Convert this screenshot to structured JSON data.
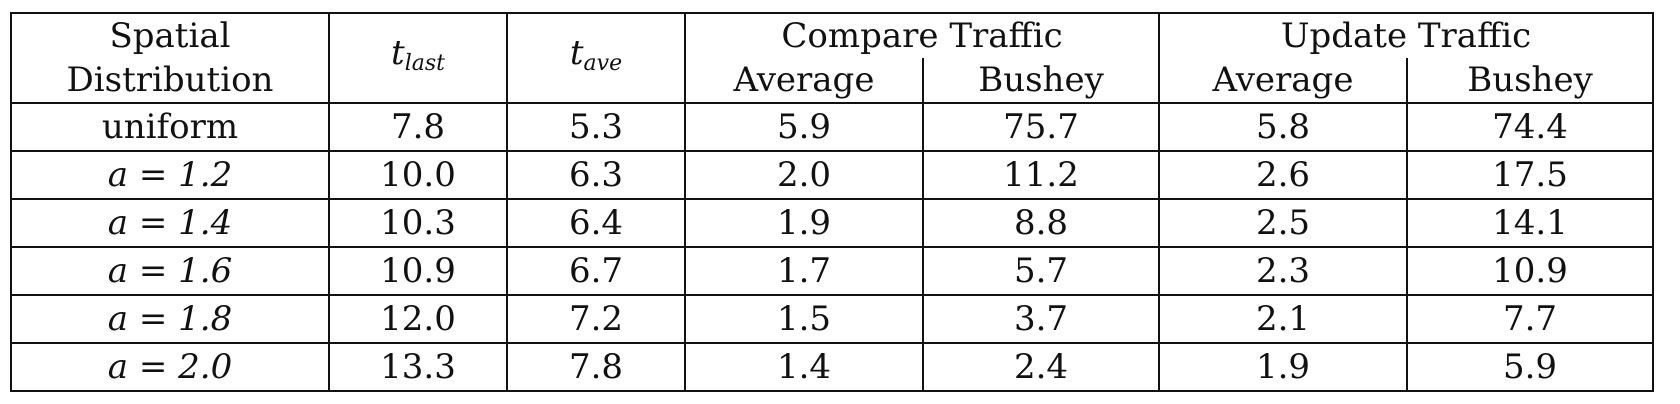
{
  "headers": {
    "col1_line1": "Spatial",
    "col1_line2": "Distribution",
    "t_last": {
      "base": "t",
      "sub": "last"
    },
    "t_ave": {
      "base": "t",
      "sub": "ave"
    },
    "compare_group": "Compare Traffic",
    "update_group": "Update Traffic",
    "average": "Average",
    "bushey": "Bushey"
  },
  "rows": [
    {
      "dist": "uniform",
      "t_last": "7.8",
      "t_ave": "5.3",
      "cmp_avg": "5.9",
      "cmp_bushey": "75.7",
      "upd_avg": "5.8",
      "upd_bushey": "74.4"
    },
    {
      "dist": "a = 1.2",
      "t_last": "10.0",
      "t_ave": "6.3",
      "cmp_avg": "2.0",
      "cmp_bushey": "11.2",
      "upd_avg": "2.6",
      "upd_bushey": "17.5"
    },
    {
      "dist": "a = 1.4",
      "t_last": "10.3",
      "t_ave": "6.4",
      "cmp_avg": "1.9",
      "cmp_bushey": "8.8",
      "upd_avg": "2.5",
      "upd_bushey": "14.1"
    },
    {
      "dist": "a = 1.6",
      "t_last": "10.9",
      "t_ave": "6.7",
      "cmp_avg": "1.7",
      "cmp_bushey": "5.7",
      "upd_avg": "2.3",
      "upd_bushey": "10.9"
    },
    {
      "dist": "a = 1.8",
      "t_last": "12.0",
      "t_ave": "7.2",
      "cmp_avg": "1.5",
      "cmp_bushey": "3.7",
      "upd_avg": "2.1",
      "upd_bushey": "7.7"
    },
    {
      "dist": "a = 2.0",
      "t_last": "13.3",
      "t_ave": "7.8",
      "cmp_avg": "1.4",
      "cmp_bushey": "2.4",
      "upd_avg": "1.9",
      "upd_bushey": "5.9"
    }
  ]
}
